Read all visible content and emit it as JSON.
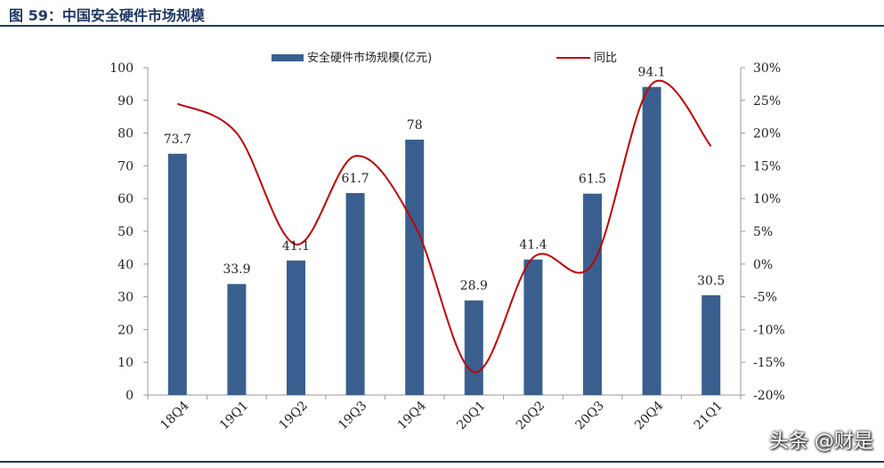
{
  "figure": {
    "title": "图 59：中国安全硬件市场规模",
    "watermark": "头条 @财是"
  },
  "colors": {
    "bar": "#3a5f8f",
    "line": "#c00000",
    "title": "#1f3864"
  },
  "chart_data": {
    "type": "bar",
    "categories": [
      "18Q4",
      "19Q1",
      "19Q2",
      "19Q3",
      "19Q4",
      "20Q1",
      "20Q2",
      "20Q3",
      "20Q4",
      "21Q1"
    ],
    "series": [
      {
        "name": "安全硬件市场规模(亿元)",
        "type": "bar",
        "axis": "left",
        "values": [
          73.7,
          33.9,
          41.1,
          61.7,
          78,
          28.9,
          41.4,
          61.5,
          94.1,
          30.5
        ],
        "labels": [
          "73.7",
          "33.9",
          "41.1",
          "61.7",
          "78",
          "28.9",
          "41.4",
          "61.5",
          "94.1",
          "30.5"
        ]
      },
      {
        "name": "同比",
        "type": "line",
        "axis": "right",
        "smooth": true,
        "values": [
          24.5,
          20.0,
          3.0,
          16.5,
          6.0,
          -16.5,
          1.0,
          0.0,
          27.5,
          18.0
        ]
      }
    ],
    "left_axis": {
      "min": 0,
      "max": 100,
      "step": 10,
      "ticks": [
        "0",
        "10",
        "20",
        "30",
        "40",
        "50",
        "60",
        "70",
        "80",
        "90",
        "100"
      ]
    },
    "right_axis": {
      "min": -20,
      "max": 30,
      "step": 5,
      "ticks": [
        "-20%",
        "-15%",
        "-10%",
        "-5%",
        "0%",
        "5%",
        "10%",
        "15%",
        "20%",
        "25%",
        "30%"
      ]
    },
    "grid": false,
    "legend_position": "top"
  }
}
